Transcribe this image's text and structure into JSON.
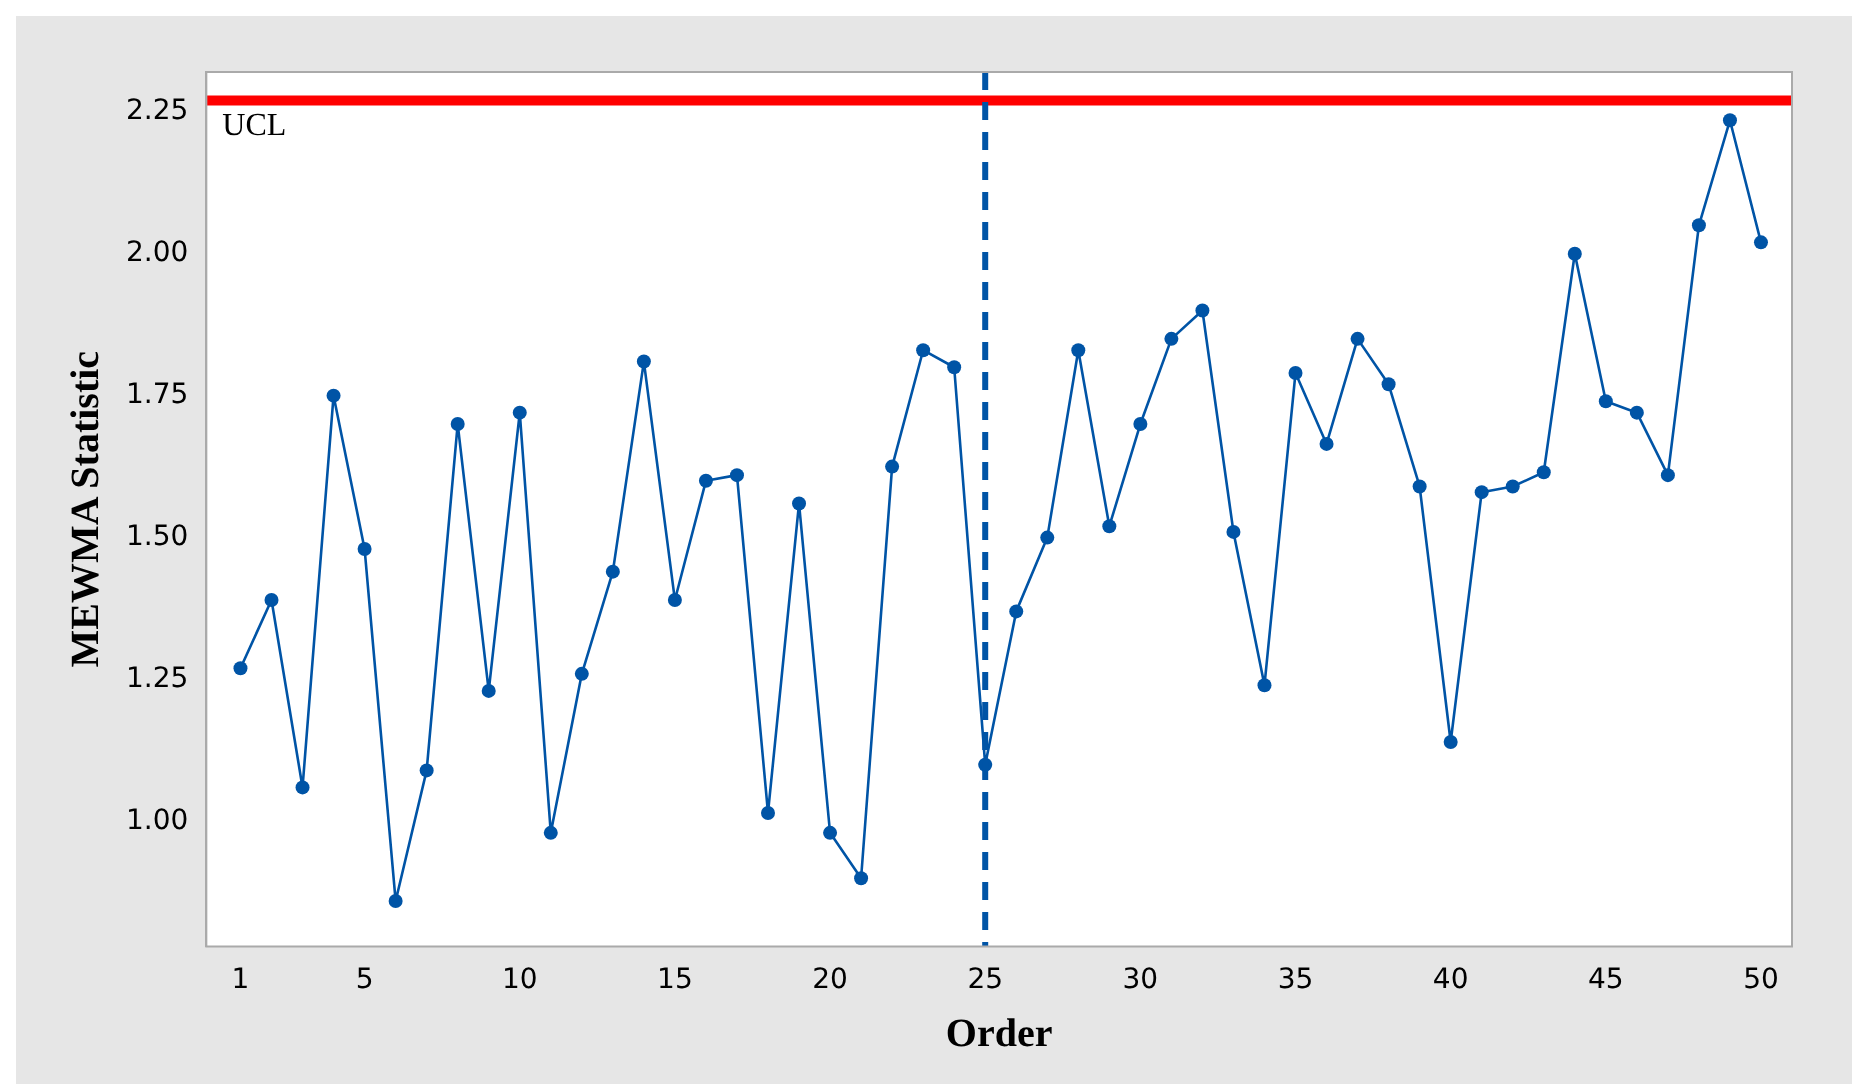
{
  "chart_data": {
    "type": "line",
    "xlabel": "Order",
    "ylabel": "MEWMA Statistic",
    "x": [
      1,
      2,
      3,
      4,
      5,
      6,
      7,
      8,
      9,
      10,
      11,
      12,
      13,
      14,
      15,
      16,
      17,
      18,
      19,
      20,
      21,
      22,
      23,
      24,
      25,
      26,
      27,
      28,
      29,
      30,
      31,
      32,
      33,
      34,
      35,
      36,
      37,
      38,
      39,
      40,
      41,
      42,
      43,
      44,
      45,
      46,
      47,
      48,
      49,
      50
    ],
    "series": [
      {
        "color": "#0054a6",
        "values": [
          1.27,
          1.39,
          1.06,
          1.75,
          1.48,
          0.86,
          1.09,
          1.7,
          1.23,
          1.72,
          0.98,
          1.26,
          1.44,
          1.81,
          1.39,
          1.6,
          1.61,
          1.015,
          1.56,
          0.98,
          0.9,
          1.625,
          1.83,
          1.8,
          1.1,
          1.37,
          1.5,
          1.83,
          1.52,
          1.7,
          1.85,
          1.9,
          1.51,
          1.24,
          1.79,
          1.665,
          1.85,
          1.77,
          1.59,
          1.14,
          1.58,
          1.59,
          1.615,
          2.0,
          1.74,
          1.72,
          1.61,
          2.05,
          2.235,
          2.02
        ]
      }
    ],
    "xlim": [
      -0.1,
      51
    ],
    "xticks": [
      1,
      5,
      10,
      15,
      20,
      25,
      30,
      35,
      40,
      45,
      50
    ],
    "ylim": [
      0.78,
      2.32
    ],
    "yticks": [
      {
        "value": 1,
        "label": "1.00"
      },
      1.25,
      {
        "value": 1.5,
        "label": "1.50"
      },
      1.75,
      {
        "value": 2,
        "label": "2.00"
      },
      2.25
    ],
    "ref_lines": [
      {
        "axis": "y",
        "value": 2.27,
        "label": "UCL",
        "color": "#ff0000",
        "line_style": "solid"
      },
      {
        "axis": "x",
        "value": 25,
        "color": "#0054a6",
        "line_style": "dashed"
      }
    ],
    "marker": "circle",
    "line_style": "solid",
    "grid": false,
    "legend": false
  }
}
